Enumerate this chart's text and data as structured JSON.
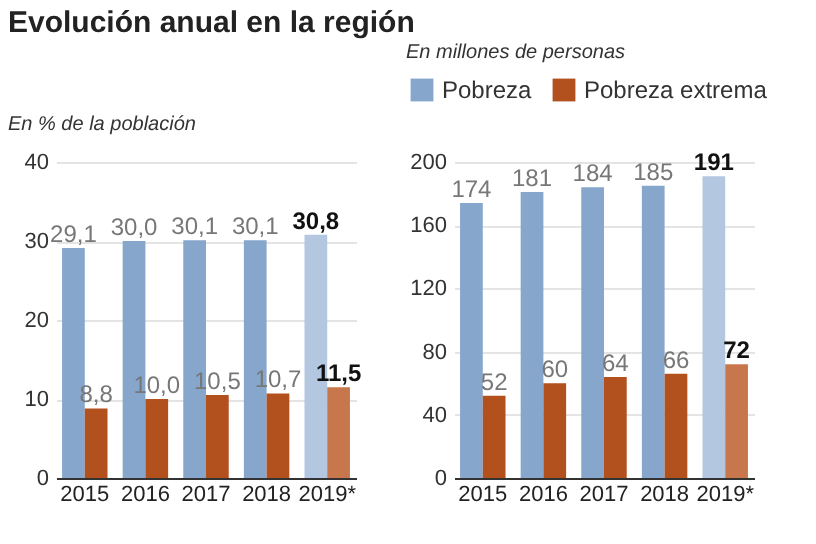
{
  "chart_data": [
    {
      "type": "bar",
      "title": "Evolución anual en la región",
      "subtitle": "En % de la población",
      "categories": [
        "2015",
        "2016",
        "2017",
        "2018",
        "2019*"
      ],
      "ylim": [
        0,
        40
      ],
      "yticks": [
        0,
        10,
        20,
        30,
        40
      ],
      "grid": "y",
      "series": [
        {
          "color": "#86a6cc",
          "colors": [
            "#86a6cc",
            "#86a6cc",
            "#86a6cc",
            "#86a6cc",
            "#b3c8e0"
          ],
          "values": [
            29.1,
            30.0,
            30.1,
            30.1,
            30.8
          ],
          "value_labels": [
            "29,1",
            "30,0",
            "30,1",
            "30,1",
            "30,8"
          ]
        },
        {
          "color": "#b2501e",
          "colors": [
            "#b2501e",
            "#b2501e",
            "#b2501e",
            "#b2501e",
            "#c8774c"
          ],
          "values": [
            8.8,
            10.0,
            10.5,
            10.7,
            11.5
          ],
          "value_labels": [
            "8,8",
            "10,0",
            "10,5",
            "10,7",
            "11,5"
          ]
        }
      ]
    },
    {
      "type": "bar",
      "subtitle": "En millones de personas",
      "categories": [
        "2015",
        "2016",
        "2017",
        "2018",
        "2019*"
      ],
      "ylim": [
        0,
        200
      ],
      "yticks": [
        0,
        40,
        80,
        120,
        160,
        200
      ],
      "grid": "y",
      "legend": "top",
      "series": [
        {
          "name": "Pobreza",
          "color": "#86a6cc",
          "colors": [
            "#86a6cc",
            "#86a6cc",
            "#86a6cc",
            "#86a6cc",
            "#b3c8e0"
          ],
          "values": [
            174,
            181,
            184,
            185,
            191
          ],
          "value_labels": [
            "174",
            "181",
            "184",
            "185",
            "191"
          ]
        },
        {
          "name": "Pobreza extrema",
          "color": "#b2501e",
          "colors": [
            "#b2501e",
            "#b2501e",
            "#b2501e",
            "#b2501e",
            "#c8774c"
          ],
          "values": [
            52,
            60,
            64,
            66,
            72
          ],
          "value_labels": [
            "52",
            "60",
            "64",
            "66",
            "72"
          ]
        }
      ]
    }
  ]
}
